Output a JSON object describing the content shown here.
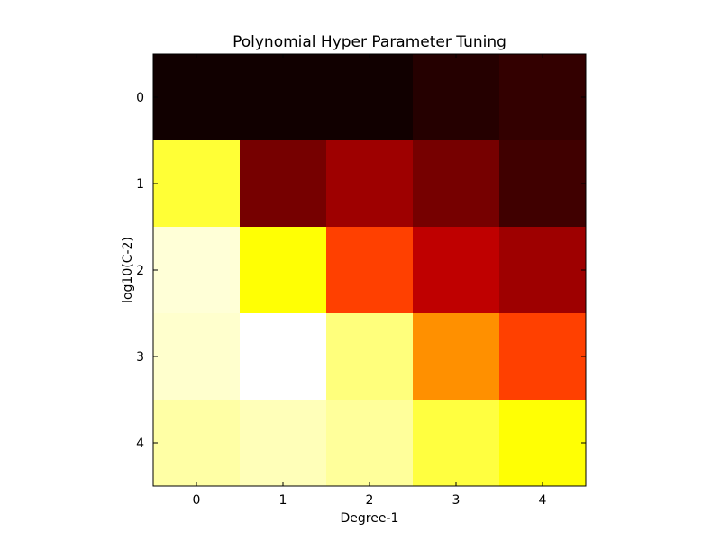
{
  "chart_data": {
    "type": "heatmap",
    "title": "Polynomial Hyper Parameter Tuning",
    "xlabel": "Degree-1",
    "ylabel": "log10(C-2)",
    "x_categories": [
      "0",
      "1",
      "2",
      "3",
      "4"
    ],
    "y_categories": [
      "0",
      "1",
      "2",
      "3",
      "4"
    ],
    "colormap": "hot",
    "value_range": [
      0,
      1
    ],
    "values": [
      [
        0.01,
        0.01,
        0.01,
        0.04,
        0.06
      ],
      [
        0.8,
        0.16,
        0.22,
        0.16,
        0.08
      ],
      [
        0.96,
        0.75,
        0.46,
        0.27,
        0.22
      ],
      [
        0.95,
        1.0,
        0.87,
        0.58,
        0.46
      ],
      [
        0.91,
        0.93,
        0.9,
        0.81,
        0.75
      ]
    ],
    "grid": false,
    "legend": "none"
  }
}
